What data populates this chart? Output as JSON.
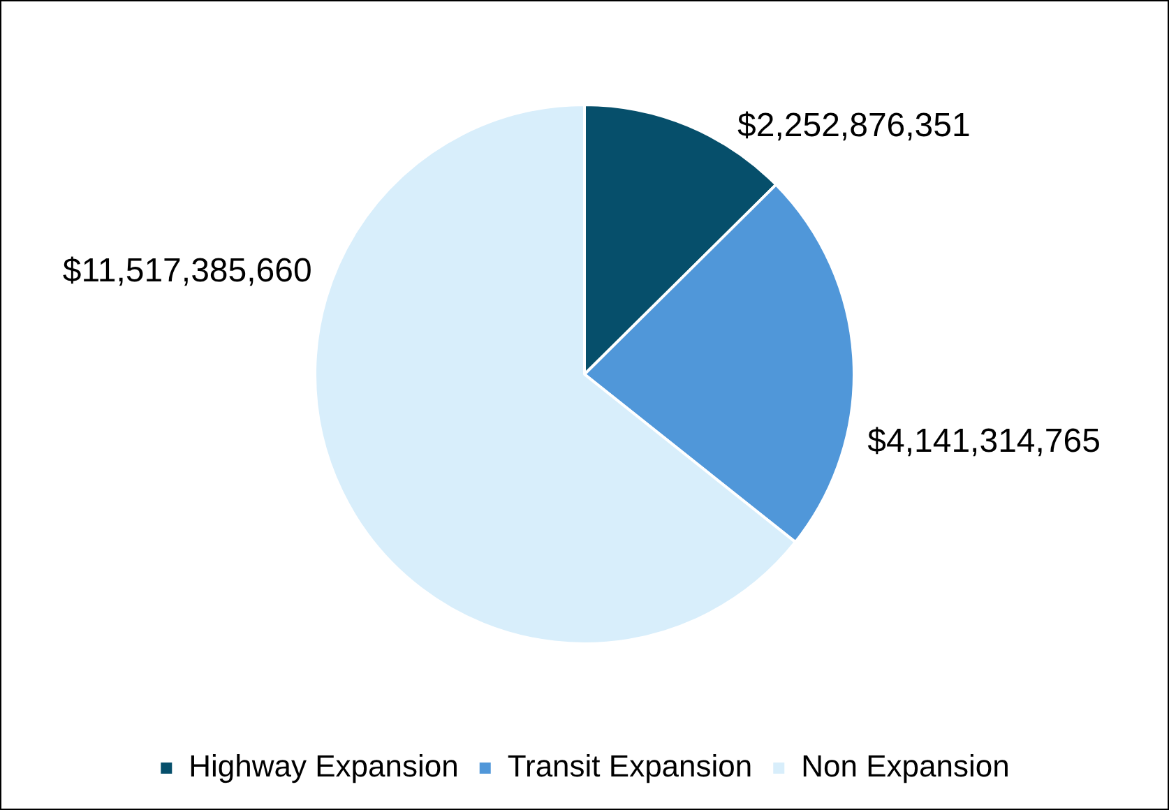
{
  "chart_data": {
    "type": "pie",
    "categories": [
      "Highway Expansion",
      "Transit Expansion",
      "Non Expansion"
    ],
    "values": [
      2252876351,
      4141314765,
      11517385660
    ],
    "colors": [
      "#064f6b",
      "#5097d9",
      "#d8eefb"
    ],
    "value_labels": [
      "$2,252,876,351",
      "$4,141,314,765",
      "$11,517,385,660"
    ],
    "legend": "bottom"
  }
}
